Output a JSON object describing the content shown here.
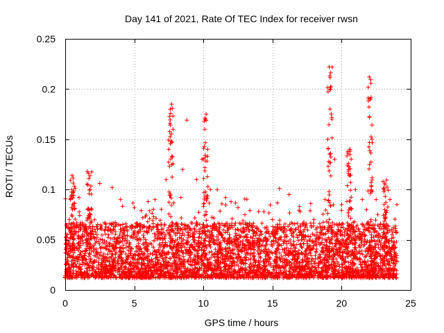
{
  "chart_data": {
    "type": "scatter",
    "title": "Day 141 of 2021, Rate Of TEC Index for receiver rwsn",
    "xlabel": "GPS time / hours",
    "ylabel": "ROTI / TECUs",
    "xlim": [
      0,
      25
    ],
    "ylim": [
      0,
      0.25
    ],
    "x_ticks": [
      0,
      5,
      10,
      15,
      20,
      25
    ],
    "x_tick_labels": [
      "0",
      "5",
      "10",
      "15",
      "20",
      "25"
    ],
    "y_ticks": [
      0,
      0.05,
      0.1,
      0.15,
      0.2,
      0.25
    ],
    "y_tick_labels": [
      "0",
      "0.05",
      "0.1",
      "0.15",
      "0.2",
      "0.25"
    ],
    "grid": true,
    "marker": "+",
    "color": "#ff0000",
    "series": [
      {
        "name": "ROTI",
        "description_points": "approximate dense cloud, representative samples",
        "x": [
          0.1,
          0.3,
          0.5,
          0.6,
          1.0,
          1.6,
          1.8,
          2.5,
          3.4,
          4.0,
          5.0,
          5.5,
          6.0,
          6.5,
          7.3,
          7.5,
          7.6,
          7.7,
          7.8,
          8.5,
          8.8,
          9.5,
          9.9,
          10.1,
          10.2,
          10.3,
          10.5,
          11.0,
          11.6,
          12.0,
          12.5,
          13.0,
          14.0,
          15.0,
          15.5,
          16.2,
          17.0,
          18.0,
          18.8,
          19.0,
          19.1,
          19.2,
          19.3,
          19.5,
          20.0,
          20.5,
          20.6,
          21.0,
          21.5,
          21.8,
          22.0,
          22.1,
          22.2,
          22.5,
          23.0,
          23.5,
          24.0
        ],
        "y": [
          0.05,
          0.07,
          0.114,
          0.094,
          0.092,
          0.118,
          0.1,
          0.106,
          0.102,
          0.09,
          0.082,
          0.079,
          0.088,
          0.09,
          0.11,
          0.14,
          0.18,
          0.185,
          0.16,
          0.12,
          0.169,
          0.11,
          0.13,
          0.16,
          0.175,
          0.14,
          0.1,
          0.1,
          0.092,
          0.088,
          0.082,
          0.075,
          0.078,
          0.07,
          0.101,
          0.095,
          0.078,
          0.07,
          0.09,
          0.15,
          0.222,
          0.2,
          0.17,
          0.13,
          0.085,
          0.12,
          0.14,
          0.1,
          0.09,
          0.08,
          0.212,
          0.19,
          0.15,
          0.09,
          0.108,
          0.09,
          0.085
        ]
      }
    ]
  }
}
